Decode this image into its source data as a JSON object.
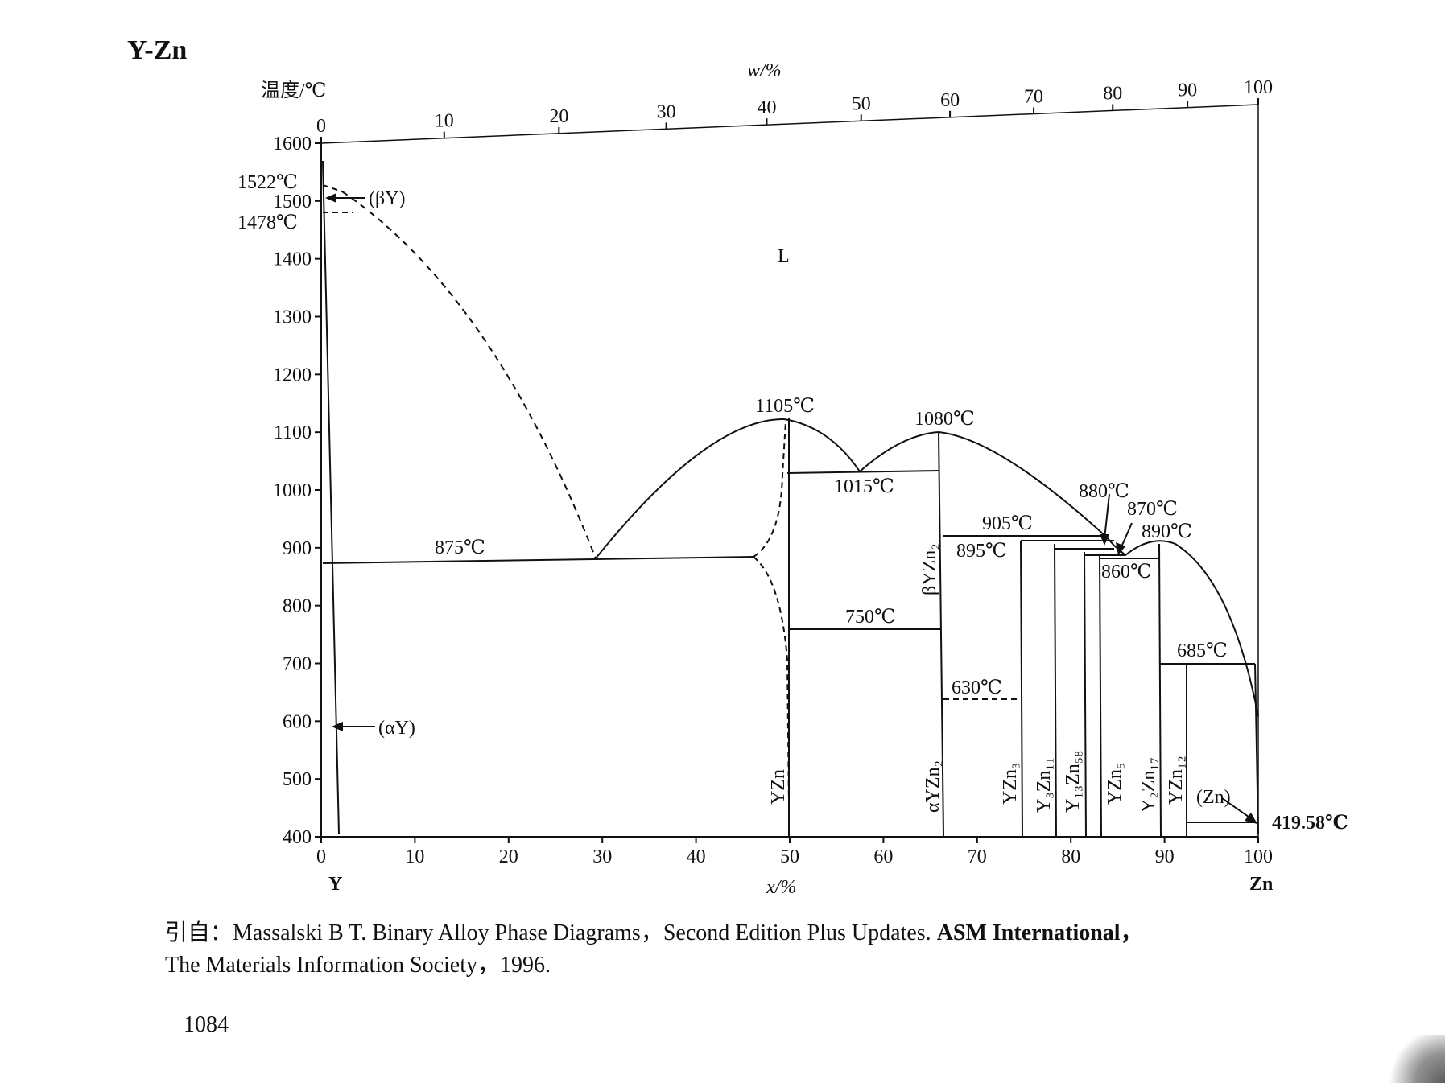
{
  "title": "Y-Zn",
  "chart_data": {
    "type": "phase-diagram",
    "y_axis": {
      "label": "温度/℃",
      "range": [
        400,
        1600
      ],
      "ticks": [
        400,
        500,
        600,
        700,
        800,
        900,
        1000,
        1100,
        1200,
        1300,
        1400,
        1500,
        1600
      ]
    },
    "x_axis_bottom": {
      "label": "x/%",
      "range": [
        0,
        100
      ],
      "ticks": [
        0,
        10,
        20,
        30,
        40,
        50,
        60,
        70,
        80,
        90,
        100
      ]
    },
    "x_axis_top": {
      "label": "w/%",
      "ticks": [
        0,
        10,
        20,
        30,
        40,
        50,
        60,
        70,
        80,
        90,
        100
      ]
    },
    "elements": {
      "left": "Y",
      "right": "Zn"
    },
    "temperature_labels": [
      {
        "text": "1522℃",
        "temp": 1522
      },
      {
        "text": "1478℃",
        "temp": 1478
      },
      {
        "text": "1105℃",
        "temp": 1105,
        "x": 49
      },
      {
        "text": "1080℃",
        "temp": 1080,
        "x": 66.4
      },
      {
        "text": "1015℃",
        "temp": 1015,
        "x": 57
      },
      {
        "text": "875℃",
        "temp": 875,
        "x": 29
      },
      {
        "text": "905℃",
        "temp": 905
      },
      {
        "text": "895℃",
        "temp": 895
      },
      {
        "text": "880℃",
        "temp": 880
      },
      {
        "text": "870℃",
        "temp": 870
      },
      {
        "text": "890℃",
        "temp": 890,
        "x": 89.5
      },
      {
        "text": "860℃",
        "temp": 860,
        "x": 86.5
      },
      {
        "text": "750℃",
        "temp": 750
      },
      {
        "text": "685℃",
        "temp": 685
      },
      {
        "text": "630℃",
        "temp": 630
      },
      {
        "text": "419.58℃",
        "temp": 419.58
      }
    ],
    "phase_labels": {
      "liquid": "L",
      "beta_y": "(βY)",
      "alpha_y": "(αY)",
      "zn_solid": "(Zn)"
    },
    "compounds": [
      {
        "name": "YZn",
        "x": 50
      },
      {
        "name": "αYZn₂",
        "x": 66.7
      },
      {
        "name": "βYZn₂",
        "x": 66.7
      },
      {
        "name": "YZn₃",
        "x": 75
      },
      {
        "name": "Y₃Zn₁₁",
        "x": 78.6
      },
      {
        "name": "Y₁₃Zn₅₈",
        "x": 81.7
      },
      {
        "name": "YZn₅",
        "x": 83.3
      },
      {
        "name": "Y₂Zn₁₇",
        "x": 89.5
      },
      {
        "name": "YZn₁₂",
        "x": 92.3
      }
    ],
    "grid": false
  },
  "citation": {
    "line1_prefix": "引自：Massalski B T.  Binary Alloy Phase Diagrams，Second Edition Plus Updates.",
    "line1_bold": "ASM International，",
    "line2": "The Materials Information Society，1996."
  },
  "page_number": "1084"
}
